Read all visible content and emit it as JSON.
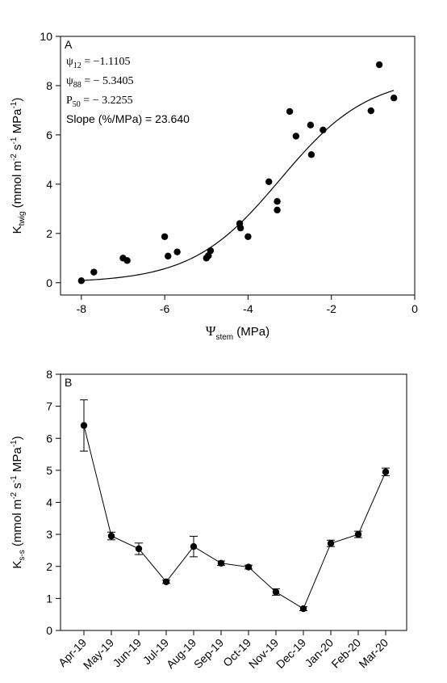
{
  "chart_data": [
    {
      "type": "scatter",
      "panel": "A",
      "xlabel": {
        "main": "Ψ",
        "sub": "stem",
        "unit": " (MPa)"
      },
      "ylabel": {
        "main": "K",
        "sub": "twig",
        "unit_pre": " (mmol  m",
        "sup1": "-2",
        "mid": " s",
        "sup2": "-1",
        "post": " MPa",
        "sup3": "-1",
        "close": ")"
      },
      "xlim": [
        -8.5,
        0
      ],
      "ylim": [
        -0.5,
        10
      ],
      "xticks": [
        -8,
        -6,
        -4,
        -2,
        0
      ],
      "xtick_labels": [
        "-8",
        "-6",
        "-4",
        "-2",
        "0"
      ],
      "yticks": [
        0,
        2,
        4,
        6,
        8,
        10
      ],
      "ytick_labels": [
        "0",
        "2",
        "4",
        "6",
        "8",
        "10"
      ],
      "grid": false,
      "annotations": [
        {
          "sym": "ψ",
          "sub": "12",
          "text": " = −1.1105"
        },
        {
          "sym": "ψ",
          "sub": "88",
          "text": " = − 5.3405"
        },
        {
          "sym": "P",
          "sub": "50",
          "text": " = − 3.2255"
        },
        {
          "sym": "Slope (%/MPa) = 23.640",
          "sub": "",
          "text": ""
        }
      ],
      "points": [
        {
          "x": -8.0,
          "y": 0.08
        },
        {
          "x": -7.7,
          "y": 0.43
        },
        {
          "x": -7.0,
          "y": 1.0
        },
        {
          "x": -6.9,
          "y": 0.9
        },
        {
          "x": -6.0,
          "y": 1.87
        },
        {
          "x": -5.92,
          "y": 1.08
        },
        {
          "x": -5.7,
          "y": 1.25
        },
        {
          "x": -5.0,
          "y": 1.0
        },
        {
          "x": -4.95,
          "y": 1.1
        },
        {
          "x": -4.9,
          "y": 1.3
        },
        {
          "x": -4.2,
          "y": 2.4
        },
        {
          "x": -4.18,
          "y": 2.22
        },
        {
          "x": -4.0,
          "y": 1.87
        },
        {
          "x": -3.5,
          "y": 4.1
        },
        {
          "x": -3.3,
          "y": 3.3
        },
        {
          "x": -3.3,
          "y": 2.95
        },
        {
          "x": -3.0,
          "y": 6.95
        },
        {
          "x": -2.85,
          "y": 5.95
        },
        {
          "x": -2.5,
          "y": 6.4
        },
        {
          "x": -2.48,
          "y": 5.2
        },
        {
          "x": -2.2,
          "y": 6.2
        },
        {
          "x": -1.05,
          "y": 6.98
        },
        {
          "x": -0.85,
          "y": 8.85
        },
        {
          "x": -0.5,
          "y": 7.5
        }
      ],
      "fit_curve": {
        "type": "sigmoid",
        "kmax": 8.4,
        "p50": -3.2255,
        "slope_pct_per_mpa": 23.64,
        "x_from": -8.0,
        "x_to": -0.5
      }
    },
    {
      "type": "line",
      "panel": "B",
      "ylabel": {
        "main": "K",
        "sub": "s-s",
        "unit_pre": " (mmol  m",
        "sup1": "-2",
        "mid": " s",
        "sup2": "-1",
        "post": " MPa",
        "sup3": "-1",
        "close": ")"
      },
      "categories": [
        "Apr-19",
        "May-19",
        "Jun-19",
        "Jul-19",
        "Aug-19",
        "Sep-19",
        "Oct-19",
        "Nov-19",
        "Dec-19",
        "Jan-20",
        "Feb-20",
        "Mar-20"
      ],
      "values": [
        6.4,
        2.95,
        2.55,
        1.52,
        2.62,
        2.1,
        1.98,
        1.2,
        0.68,
        2.72,
        3.0,
        4.95
      ],
      "errors": [
        0.8,
        0.12,
        0.18,
        0.05,
        0.32,
        0.07,
        0.06,
        0.1,
        0.06,
        0.1,
        0.1,
        0.12
      ],
      "ylim": [
        0,
        8
      ],
      "yticks": [
        0,
        1,
        2,
        3,
        4,
        5,
        6,
        7,
        8
      ],
      "ytick_labels": [
        "0",
        "1",
        "2",
        "3",
        "4",
        "5",
        "6",
        "7",
        "8"
      ],
      "grid": false
    }
  ]
}
